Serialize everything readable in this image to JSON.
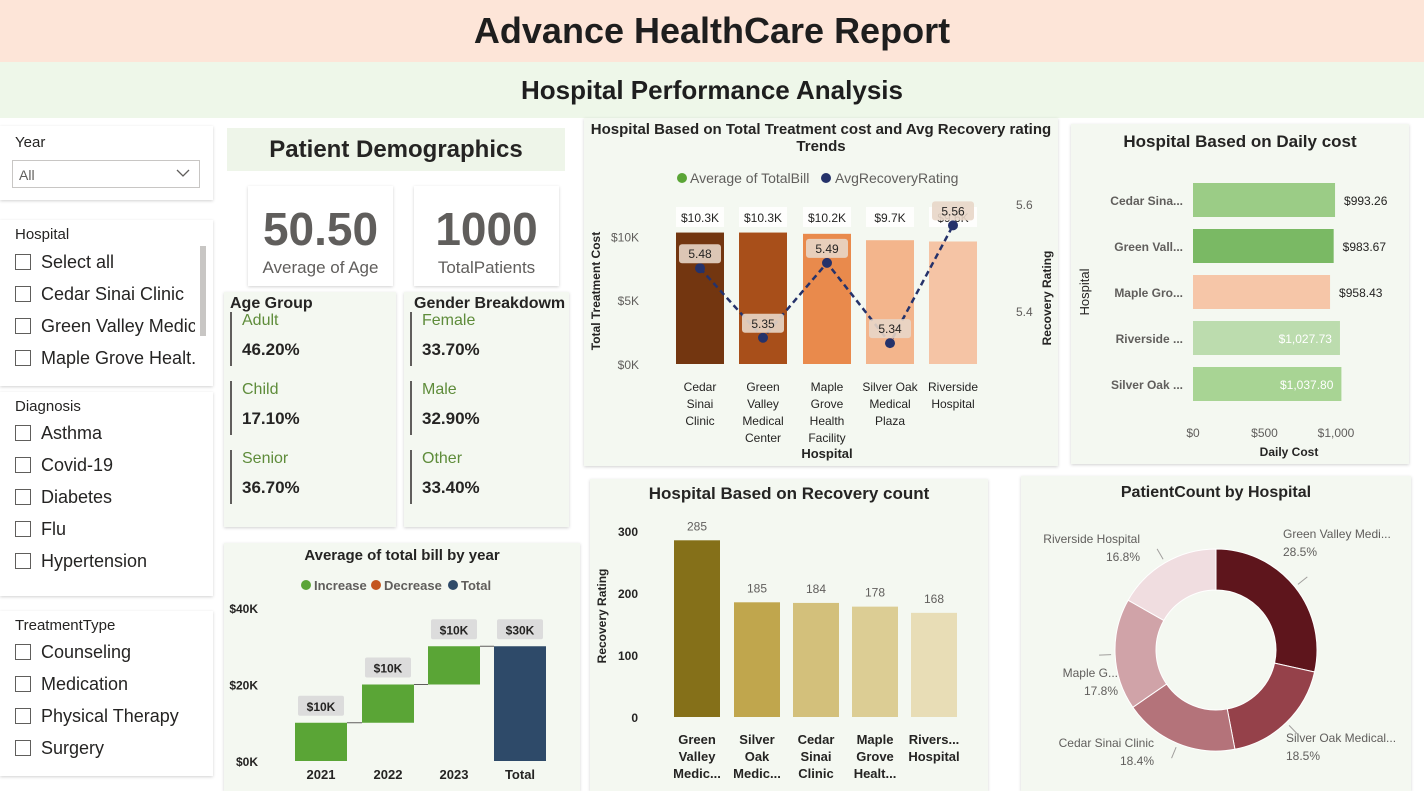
{
  "header": {
    "title": "Advance HealthCare Report",
    "subtitle": "Hospital Performance Analysis"
  },
  "filters": {
    "year": {
      "title": "Year",
      "selected": "All"
    },
    "hospital": {
      "title": "Hospital",
      "options": [
        "Select all",
        "Cedar Sinai Clinic",
        "Green Valley Medic...",
        "Maple Grove Healt..."
      ]
    },
    "diagnosis": {
      "title": "Diagnosis",
      "options": [
        "Asthma",
        "Covid-19",
        "Diabetes",
        "Flu",
        "Hypertension"
      ]
    },
    "treatment": {
      "title": "TreatmentType",
      "options": [
        "Counseling",
        "Medication",
        "Physical Therapy",
        "Surgery"
      ]
    }
  },
  "demographics": {
    "title": "Patient Demographics",
    "kpis": [
      {
        "value": "50.50",
        "label": "Average of Age"
      },
      {
        "value": "1000",
        "label": "TotalPatients"
      }
    ],
    "age": {
      "title": "Age Group",
      "items": [
        {
          "label": "Adult",
          "value": "46.20%"
        },
        {
          "label": "Child",
          "value": "17.10%"
        },
        {
          "label": "Senior",
          "value": "36.70%"
        }
      ]
    },
    "gender": {
      "title": "Gender Breakdowm",
      "items": [
        {
          "label": "Female",
          "value": "33.70%"
        },
        {
          "label": "Male",
          "value": "32.90%"
        },
        {
          "label": "Other",
          "value": "33.40%"
        }
      ]
    }
  },
  "colors": {
    "increase": "#5aa536",
    "decrease": "#c4561f",
    "total": "#2e4a69",
    "line": "#25326a"
  },
  "chart_data": [
    {
      "id": "combo",
      "type": "bar",
      "title": "Hospital Based on Total Treatment cost and Avg Recovery rating Trends",
      "categories": [
        "Cedar Sinai Clinic",
        "Green Valley Medical Center",
        "Maple Grove Health Facility",
        "Silver Oak Medical Plaza",
        "Riverside Hospital"
      ],
      "series": [
        {
          "name": "Average of TotalBill",
          "values": [
            10300,
            10300,
            10200,
            9700,
            9600
          ],
          "labels": [
            "$10.3K",
            "$10.3K",
            "$10.2K",
            "$9.7K",
            "$9.6K"
          ],
          "colors": [
            "#733610",
            "#a84f1a",
            "#e98a4c",
            "#f3b58c",
            "#f5c4a5"
          ]
        },
        {
          "name": "AvgRecoveryRating",
          "values": [
            5.48,
            5.35,
            5.49,
            5.34,
            5.56
          ],
          "labels": [
            "5.48",
            "5.35",
            "5.49",
            "5.34",
            "5.56"
          ]
        }
      ],
      "xlabel": "Hospital",
      "ylabel": "Total Treatment Cost",
      "y2label": "Recovery Rating",
      "yticks": [
        "$0K",
        "$5K",
        "$10K"
      ],
      "y2ticks": [
        "5.4",
        "5.6"
      ],
      "ylim": [
        0,
        10500
      ],
      "y2lim": [
        5.3,
        5.6
      ]
    },
    {
      "id": "daily",
      "type": "bar",
      "title": "Hospital Based on Daily cost",
      "categories": [
        "Cedar Sina...",
        "Green Vall...",
        "Maple Gro...",
        "Riverside ...",
        "Silver Oak ..."
      ],
      "values": [
        993.26,
        983.67,
        958.43,
        1027.73,
        1037.8
      ],
      "labels": [
        "$993.26",
        "$983.67",
        "$958.43",
        "$1,027.73",
        "$1,037.80"
      ],
      "colors": [
        "#9bcc86",
        "#7ab964",
        "#f6c6a8",
        "#bcdcae",
        "#a8d494"
      ],
      "xlabel": "Daily Cost",
      "ylabel": "Hospital",
      "xticks": [
        "$0",
        "$500",
        "$1,000"
      ],
      "xlim": [
        0,
        1100
      ]
    },
    {
      "id": "recovery",
      "type": "bar",
      "title": "Hospital Based on Recovery count",
      "categories": [
        "Green Valley Medic...",
        "Silver Oak Medic...",
        "Cedar Sinai Clinic",
        "Maple Grove Healt...",
        "Rivers... Hospital"
      ],
      "values": [
        285,
        185,
        184,
        178,
        168
      ],
      "colors": [
        "#857019",
        "#c0a64d",
        "#d3c07b",
        "#dccd94",
        "#e8ddb6"
      ],
      "ylabel": "Recovery Rating",
      "yticks": [
        "0",
        "100",
        "200",
        "300"
      ],
      "ylim": [
        0,
        300
      ]
    },
    {
      "id": "pie",
      "type": "pie",
      "title": "PatientCount by Hospital",
      "labels": [
        "Green Valley Medi...",
        "Silver Oak Medical...",
        "Cedar Sinai Clinic",
        "Maple G...",
        "Riverside Hospital"
      ],
      "values": [
        28.5,
        18.5,
        18.4,
        17.8,
        16.8
      ],
      "pct_labels": [
        "28.5%",
        "18.5%",
        "18.4%",
        "17.8%",
        "16.8%"
      ],
      "colors": [
        "#5e151c",
        "#95414a",
        "#b4737a",
        "#d0a3a8",
        "#f0dde0"
      ]
    },
    {
      "id": "waterfall",
      "type": "bar",
      "title": "Average of total bill by year",
      "categories": [
        "2021",
        "2022",
        "2023",
        "Total"
      ],
      "values": [
        10000,
        10000,
        10000,
        30000
      ],
      "kinds": [
        "increase",
        "increase",
        "increase",
        "total"
      ],
      "labels": [
        "$10K",
        "$10K",
        "$10K",
        "$30K"
      ],
      "legend": [
        "Increase",
        "Decrease",
        "Total"
      ],
      "yticks": [
        "$0K",
        "$20K",
        "$40K"
      ],
      "ylim": [
        0,
        40000
      ]
    }
  ]
}
